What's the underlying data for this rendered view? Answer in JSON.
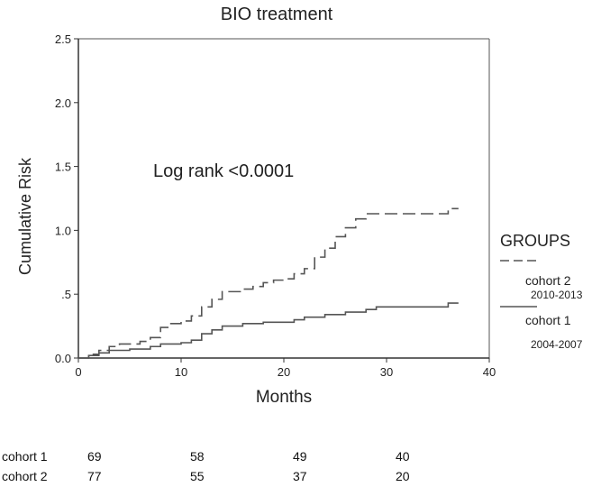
{
  "chart_data": {
    "type": "line",
    "title": "BIO treatment",
    "xlabel": "Months",
    "ylabel": "Cumulative Risk",
    "xlim": [
      0,
      40
    ],
    "ylim": [
      0,
      2.5
    ],
    "x_ticks": [
      0,
      10,
      20,
      30,
      40
    ],
    "y_ticks": [
      0.0,
      0.5,
      1.0,
      1.5,
      2.0,
      2.5
    ],
    "y_tick_labels": [
      "0.0",
      ".5",
      "1.0",
      "1.5",
      "2.0",
      "2.5"
    ],
    "grid": false,
    "step": true,
    "annotation": "Log rank <0.0001",
    "legend": {
      "title": "GROUPS",
      "position": "right",
      "entries": [
        {
          "name": "cohort 2",
          "subtitle": "2010-2013",
          "style": "dashed"
        },
        {
          "name": "cohort 1",
          "subtitle": "2004-2007",
          "style": "solid"
        }
      ]
    },
    "series": [
      {
        "name": "cohort 2",
        "style": "dashed",
        "x": [
          1,
          2,
          3,
          4,
          6,
          7,
          8,
          9,
          10,
          11,
          12,
          13,
          14,
          16,
          17,
          18,
          19,
          20,
          21,
          22,
          23,
          24,
          25,
          26,
          27,
          28,
          29,
          36,
          37
        ],
        "y": [
          0.03,
          0.06,
          0.09,
          0.11,
          0.13,
          0.16,
          0.24,
          0.27,
          0.29,
          0.33,
          0.4,
          0.46,
          0.52,
          0.54,
          0.56,
          0.59,
          0.61,
          0.62,
          0.66,
          0.7,
          0.79,
          0.86,
          0.95,
          1.02,
          1.09,
          1.13,
          1.13,
          1.17,
          1.17
        ]
      },
      {
        "name": "cohort 1",
        "style": "solid",
        "x": [
          1,
          2,
          3,
          5,
          7,
          8,
          10,
          11,
          12,
          13,
          14,
          16,
          18,
          21,
          22,
          24,
          26,
          28,
          29,
          36,
          37
        ],
        "y": [
          0.02,
          0.04,
          0.06,
          0.07,
          0.09,
          0.11,
          0.12,
          0.14,
          0.19,
          0.22,
          0.25,
          0.27,
          0.28,
          0.3,
          0.32,
          0.34,
          0.36,
          0.38,
          0.4,
          0.43,
          0.43
        ]
      }
    ],
    "risk_table": {
      "times": [
        0,
        10,
        20,
        30
      ],
      "rows": [
        {
          "name": "cohort 1",
          "values": [
            "69",
            "58",
            "49",
            "40"
          ]
        },
        {
          "name": "cohort 2",
          "values": [
            "77",
            "55",
            "37",
            "20"
          ]
        }
      ]
    }
  }
}
